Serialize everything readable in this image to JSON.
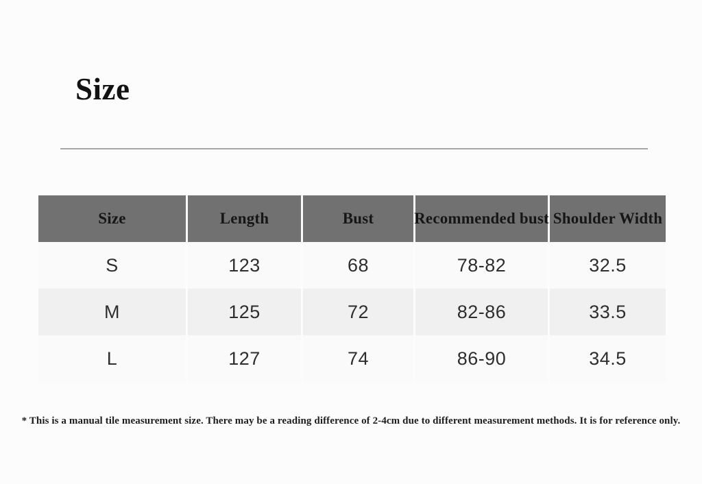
{
  "page": {
    "title": "Size",
    "footnote": "* This is a manual tile measurement size. There may be a reading difference of 2-4cm due to different measurement methods. It is for reference only."
  },
  "size_table": {
    "columns": [
      "Size",
      "Length",
      "Bust",
      "Recommended bust",
      "Shoulder Width"
    ],
    "rows": [
      [
        "S",
        "123",
        "68",
        "78-82",
        "32.5"
      ],
      [
        "M",
        "125",
        "72",
        "82-86",
        "33.5"
      ],
      [
        "L",
        "127",
        "74",
        "86-90",
        "34.5"
      ]
    ]
  },
  "colors": {
    "page_bg": "#fcfcfc",
    "header_bg": "#717171",
    "header_text": "#161616",
    "row_bg": "#fafafa",
    "row_alt_bg": "#f0f0f0",
    "cell_text": "#2e2e2e",
    "divider": "#a6a6a6"
  }
}
